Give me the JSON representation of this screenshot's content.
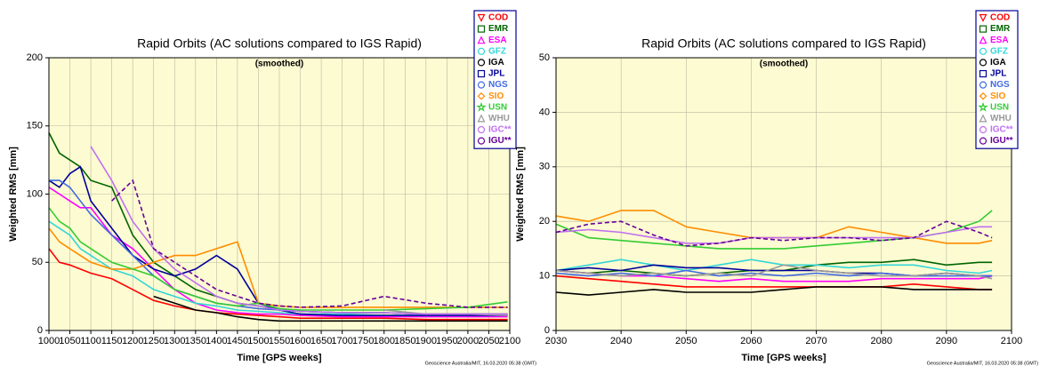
{
  "chart_data": [
    {
      "type": "line",
      "title": "Rapid Orbits (AC solutions compared to IGS Rapid)",
      "subtitle": "(smoothed)",
      "x_label": "Time [GPS weeks]",
      "y_label": "Weighted RMS [mm]",
      "footer": "Geoscience Australia/MIT, 16.03.2020 05:38 (GMT)",
      "xlim": [
        1000,
        2100
      ],
      "ylim": [
        0,
        200
      ],
      "xticks": [
        1000,
        1050,
        1100,
        1150,
        1200,
        1250,
        1300,
        1350,
        1400,
        1450,
        1500,
        1550,
        1600,
        1650,
        1700,
        1750,
        1800,
        1850,
        1900,
        1950,
        2000,
        2050,
        2100
      ],
      "yticks": [
        0,
        50,
        100,
        150,
        200
      ],
      "grid": true,
      "legend": "top-right",
      "x": [
        1000,
        1025,
        1050,
        1075,
        1100,
        1150,
        1200,
        1250,
        1300,
        1350,
        1400,
        1450,
        1500,
        1550,
        1600,
        1700,
        1800,
        1900,
        2000,
        2095
      ],
      "series": [
        {
          "name": "COD",
          "color": "#ff0000",
          "marker": "triangle-down",
          "values": [
            60,
            50,
            48,
            45,
            42,
            38,
            30,
            22,
            18,
            15,
            13,
            12,
            11,
            10,
            9,
            9,
            9,
            8,
            8,
            8
          ]
        },
        {
          "name": "EMR",
          "color": "#006400",
          "marker": "square",
          "values": [
            145,
            130,
            125,
            120,
            110,
            105,
            70,
            50,
            40,
            30,
            25,
            20,
            18,
            15,
            14,
            13,
            13,
            12,
            12,
            12
          ]
        },
        {
          "name": "ESA",
          "color": "#ff00ff",
          "marker": "triangle-up",
          "values": [
            105,
            100,
            95,
            90,
            90,
            70,
            60,
            45,
            30,
            20,
            15,
            13,
            12,
            12,
            11,
            10,
            10,
            10,
            10,
            10
          ]
        },
        {
          "name": "GFZ",
          "color": "#33d6d6",
          "marker": "circle",
          "values": [
            80,
            75,
            70,
            60,
            55,
            45,
            40,
            30,
            25,
            20,
            18,
            15,
            14,
            13,
            12,
            12,
            11,
            11,
            11,
            11
          ]
        },
        {
          "name": "IGA",
          "color": "#000000",
          "marker": "circle",
          "values": [
            null,
            null,
            null,
            null,
            null,
            null,
            null,
            25,
            20,
            15,
            13,
            10,
            8,
            7,
            7,
            7,
            7,
            7,
            7,
            7
          ]
        },
        {
          "name": "JPL",
          "color": "#000099",
          "marker": "square",
          "values": [
            110,
            105,
            115,
            120,
            95,
            75,
            55,
            45,
            40,
            45,
            55,
            45,
            20,
            15,
            12,
            11,
            11,
            11,
            11,
            11
          ]
        },
        {
          "name": "NGS",
          "color": "#4169e1",
          "marker": "circle",
          "values": [
            110,
            110,
            105,
            95,
            85,
            70,
            55,
            40,
            30,
            25,
            20,
            18,
            16,
            15,
            14,
            13,
            13,
            12,
            12,
            12
          ]
        },
        {
          "name": "SIO",
          "color": "#ff8c00",
          "marker": "diamond",
          "values": [
            75,
            65,
            60,
            55,
            50,
            45,
            45,
            50,
            55,
            55,
            60,
            65,
            20,
            18,
            17,
            17,
            17,
            17,
            17,
            17
          ]
        },
        {
          "name": "USN",
          "color": "#33cc33",
          "marker": "star",
          "values": [
            90,
            80,
            75,
            65,
            60,
            50,
            45,
            40,
            30,
            25,
            20,
            18,
            20,
            16,
            15,
            15,
            15,
            16,
            17,
            21
          ]
        },
        {
          "name": "WHU",
          "color": "#999999",
          "marker": "triangle-up",
          "values": [
            null,
            null,
            null,
            null,
            null,
            null,
            null,
            null,
            null,
            null,
            null,
            null,
            null,
            null,
            null,
            null,
            15,
            12,
            12,
            11
          ]
        },
        {
          "name": "IGC**",
          "color": "#c070f0",
          "marker": "circle",
          "values": [
            null,
            null,
            null,
            null,
            135,
            110,
            80,
            60,
            45,
            35,
            25,
            20,
            18,
            15,
            14,
            13,
            13,
            12,
            12,
            12
          ]
        },
        {
          "name": "IGU**",
          "color": "#660099",
          "marker": "circle",
          "dashed": true,
          "values": [
            null,
            null,
            null,
            null,
            null,
            95,
            110,
            60,
            50,
            40,
            30,
            25,
            20,
            18,
            17,
            18,
            25,
            20,
            17,
            17
          ]
        }
      ]
    },
    {
      "type": "line",
      "title": "Rapid Orbits (AC solutions compared to IGS Rapid)",
      "subtitle": "(smoothed)",
      "x_label": "Time [GPS weeks]",
      "y_label": "Weighted RMS [mm]",
      "footer": "Geoscience Australia/MIT, 16.03.2020 05:38 (GMT)",
      "xlim": [
        2030,
        2100
      ],
      "ylim": [
        0,
        50
      ],
      "xticks": [
        2030,
        2040,
        2050,
        2060,
        2070,
        2080,
        2090,
        2100
      ],
      "yticks": [
        0,
        10,
        20,
        30,
        40,
        50
      ],
      "grid": true,
      "legend": "top-right",
      "x": [
        2030,
        2035,
        2040,
        2045,
        2050,
        2055,
        2060,
        2065,
        2070,
        2075,
        2080,
        2085,
        2090,
        2095,
        2097
      ],
      "series": [
        {
          "name": "COD",
          "color": "#ff0000",
          "marker": "triangle-down",
          "values": [
            10,
            9.5,
            9,
            8.5,
            8,
            8,
            8,
            8,
            8,
            8,
            8,
            8.5,
            8,
            7.5,
            7.5
          ]
        },
        {
          "name": "EMR",
          "color": "#006400",
          "marker": "square",
          "values": [
            11,
            10.5,
            11,
            10.5,
            10,
            10.5,
            11,
            11,
            12,
            12.5,
            12.5,
            13,
            12,
            12.5,
            12.5
          ]
        },
        {
          "name": "ESA",
          "color": "#ff00ff",
          "marker": "triangle-up",
          "values": [
            11,
            10.5,
            10,
            10,
            9.5,
            9,
            9.5,
            9,
            9,
            9,
            9.5,
            9.5,
            9.5,
            9.5,
            10
          ]
        },
        {
          "name": "GFZ",
          "color": "#33d6d6",
          "marker": "circle",
          "values": [
            11,
            12,
            13,
            12,
            11,
            12,
            13,
            12,
            12,
            11.5,
            12,
            12,
            11,
            10.5,
            11
          ]
        },
        {
          "name": "IGA",
          "color": "#000000",
          "marker": "circle",
          "values": [
            7,
            6.5,
            7,
            7.5,
            7,
            7,
            7,
            7.5,
            8,
            8,
            8,
            7.5,
            7.5,
            7.5,
            7.5
          ]
        },
        {
          "name": "JPL",
          "color": "#000099",
          "marker": "square",
          "values": [
            11,
            11.5,
            11,
            12,
            11.5,
            11.5,
            11,
            11,
            11,
            10.5,
            10.5,
            10,
            10.5,
            10,
            10
          ]
        },
        {
          "name": "NGS",
          "color": "#4169e1",
          "marker": "circle",
          "values": [
            10.5,
            10,
            10.5,
            10,
            11,
            10,
            10.5,
            10,
            10.5,
            10,
            10.5,
            10,
            10,
            10,
            10
          ]
        },
        {
          "name": "SIO",
          "color": "#ff8c00",
          "marker": "diamond",
          "values": [
            21,
            20,
            22,
            22,
            19,
            18,
            17,
            17,
            17,
            19,
            18,
            17,
            16,
            16,
            16.5
          ]
        },
        {
          "name": "USN",
          "color": "#33cc33",
          "marker": "star",
          "values": [
            19.5,
            17,
            16.5,
            16,
            15.5,
            15,
            15,
            15,
            15.5,
            16,
            16.5,
            17,
            18,
            20,
            22
          ]
        },
        {
          "name": "WHU",
          "color": "#999999",
          "marker": "triangle-up",
          "values": [
            11,
            10.5,
            10,
            10.5,
            10,
            10.5,
            10,
            12,
            11,
            10.5,
            10,
            10,
            10.5,
            10,
            9.5
          ]
        },
        {
          "name": "IGC**",
          "color": "#c070f0",
          "marker": "circle",
          "values": [
            18,
            18.5,
            18,
            17,
            16,
            16,
            17,
            17,
            17,
            17,
            17,
            17,
            18,
            19,
            19
          ]
        },
        {
          "name": "IGU**",
          "color": "#660099",
          "marker": "circle",
          "dashed": true,
          "values": [
            18,
            19.5,
            20,
            17.5,
            15.5,
            16,
            17,
            16.5,
            17,
            17,
            16.5,
            17,
            20,
            18,
            17
          ]
        }
      ]
    }
  ]
}
